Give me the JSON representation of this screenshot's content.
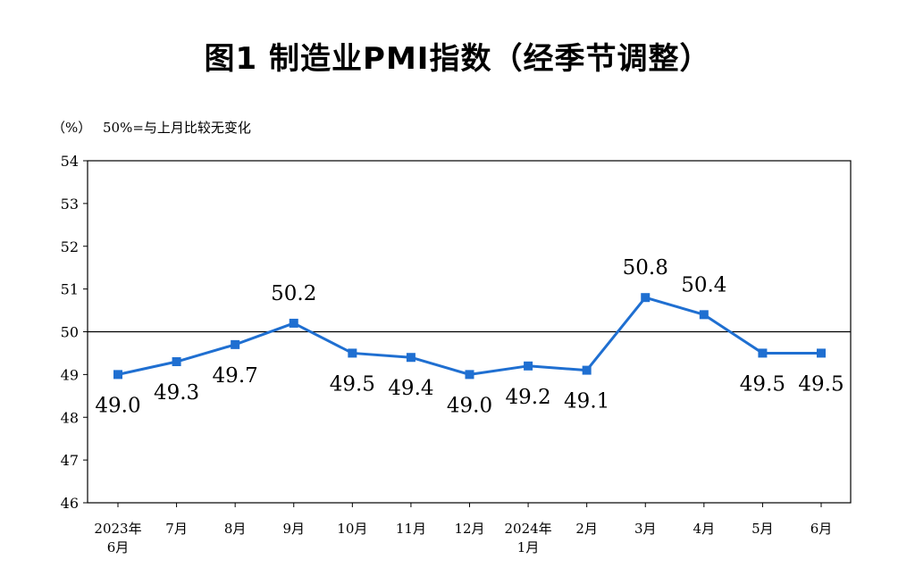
{
  "chart_data": {
    "type": "line",
    "title": "图1  制造业PMI指数（经季节调整）",
    "y_unit_label": "（%）",
    "reference_note": "50%=与上月比较无变化",
    "reference_value": 50,
    "ylim": [
      46,
      54
    ],
    "yticks": [
      "46",
      "47",
      "48",
      "49",
      "50",
      "51",
      "52",
      "53",
      "54"
    ],
    "categories": [
      [
        "2023年",
        "6月"
      ],
      [
        "7月"
      ],
      [
        "8月"
      ],
      [
        "9月"
      ],
      [
        "10月"
      ],
      [
        "11月"
      ],
      [
        "12月"
      ],
      [
        "2024年",
        "1月"
      ],
      [
        "2月"
      ],
      [
        "3月"
      ],
      [
        "4月"
      ],
      [
        "5月"
      ],
      [
        "6月"
      ]
    ],
    "series": [
      {
        "values": [
          49.0,
          49.3,
          49.7,
          50.2,
          49.5,
          49.4,
          49.0,
          49.2,
          49.1,
          50.8,
          50.4,
          49.5,
          49.5
        ],
        "labels": [
          "49.0",
          "49.3",
          "49.7",
          "50.2",
          "49.5",
          "49.4",
          "49.0",
          "49.2",
          "49.1",
          "50.8",
          "50.4",
          "49.5",
          "49.5"
        ],
        "label_position": [
          "below",
          "below",
          "below",
          "above",
          "below",
          "below",
          "below",
          "below",
          "below",
          "above",
          "above",
          "below",
          "below"
        ]
      }
    ],
    "colors": {
      "line": "#1f6fd1",
      "marker": "#1f6fd1",
      "axis": "#000000"
    }
  }
}
